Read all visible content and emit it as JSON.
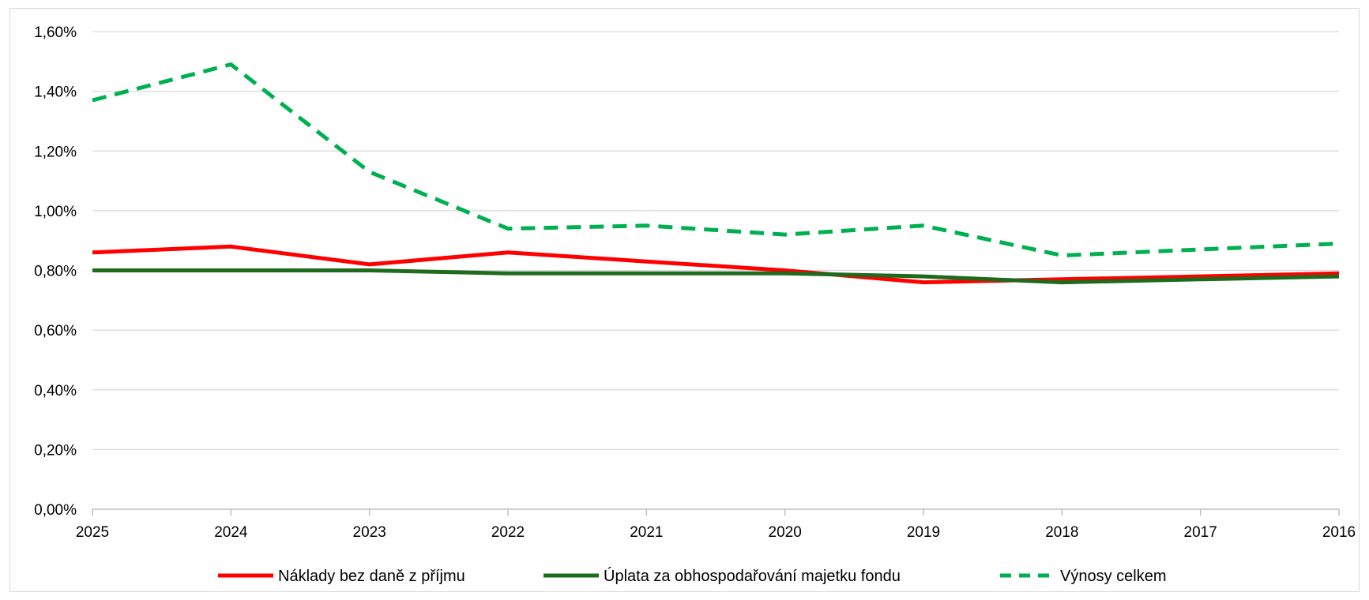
{
  "chart_data": {
    "type": "line",
    "title": "",
    "xlabel": "",
    "ylabel": "",
    "categories": [
      "2025",
      "2024",
      "2023",
      "2022",
      "2021",
      "2020",
      "2019",
      "2018",
      "2017",
      "2016"
    ],
    "ylim": [
      0,
      1.6
    ],
    "yticks": [
      0,
      0.2,
      0.4,
      0.6,
      0.8,
      1.0,
      1.2,
      1.4,
      1.6
    ],
    "ytick_labels": [
      "0,00%",
      "0,20%",
      "0,40%",
      "0,60%",
      "0,80%",
      "1,00%",
      "1,20%",
      "1,40%",
      "1,60%"
    ],
    "grid": true,
    "legend_position": "bottom",
    "series": [
      {
        "name": "Náklady bez daně z příjmu",
        "color": "#ff0000",
        "style": "solid",
        "values": [
          0.86,
          0.88,
          0.82,
          0.86,
          0.83,
          0.8,
          0.76,
          0.77,
          0.78,
          0.79
        ]
      },
      {
        "name": "Úplata za obhospodařování majetku fondu",
        "color": "#1e6b1e",
        "style": "solid",
        "values": [
          0.8,
          0.8,
          0.8,
          0.79,
          0.79,
          0.79,
          0.78,
          0.76,
          0.77,
          0.78
        ]
      },
      {
        "name": "Výnosy celkem",
        "color": "#00b050",
        "style": "dashed",
        "values": [
          1.37,
          1.49,
          1.13,
          0.94,
          0.95,
          0.92,
          0.95,
          0.85,
          0.87,
          0.89
        ]
      }
    ]
  }
}
